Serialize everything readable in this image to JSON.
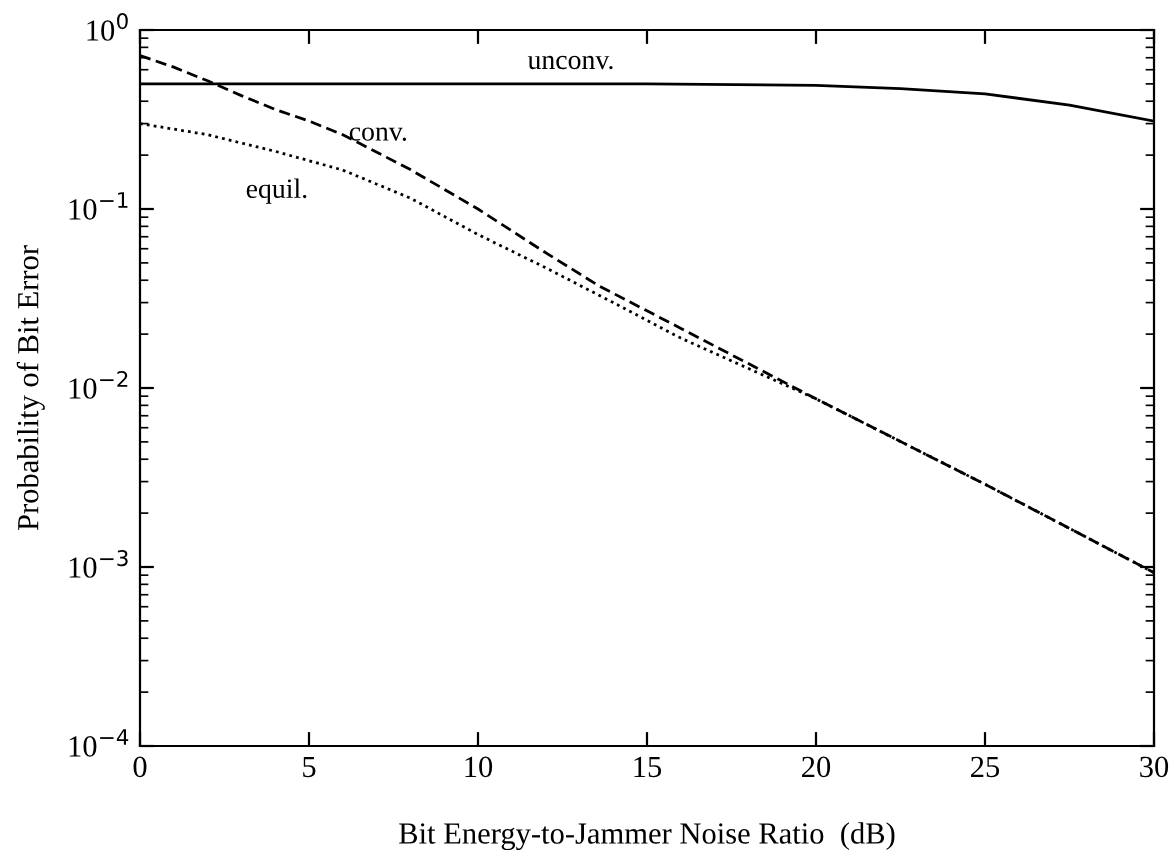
{
  "chart_data": {
    "type": "line",
    "xlabel": "Bit Energy-to-Jammer Noise Ratio  (dB)",
    "ylabel": "Probability of Bit Error",
    "log": "y",
    "xlim": [
      0,
      30
    ],
    "xticks": [
      0,
      5,
      10,
      15,
      20,
      25,
      30
    ],
    "ylim": [
      0.0001,
      1
    ],
    "yticks": [
      {
        "value": 0.0001,
        "label": "10$^{−4}$"
      },
      {
        "value": 0.001,
        "label": "10$^{−3}$"
      },
      {
        "value": 0.01,
        "label": "10$^{−2}$"
      },
      {
        "value": 0.1,
        "label": "10$^{−1}$"
      },
      {
        "value": 1,
        "label": "10$^{0}$"
      }
    ],
    "grid": false,
    "legend": false,
    "marker": "none",
    "series": [
      {
        "color": "#000000",
        "line_style": "solid",
        "x": [
          0,
          10,
          15,
          20,
          22.5,
          25,
          27.5,
          30
        ],
        "values": [
          0.5,
          0.5,
          0.5,
          0.49,
          0.47,
          0.44,
          0.38,
          0.31
        ]
      },
      {
        "color": "#000000",
        "line_style": "dashed",
        "x": [
          0,
          1,
          2,
          3,
          4,
          5,
          6,
          8,
          10,
          12,
          13.6,
          15,
          20,
          25,
          30
        ],
        "values": [
          0.72,
          0.62,
          0.52,
          0.43,
          0.36,
          0.31,
          0.26,
          0.166,
          0.1,
          0.057,
          0.037,
          0.027,
          0.0087,
          0.0029,
          0.00093
        ]
      },
      {
        "color": "#000000",
        "line_style": "dotted",
        "x": [
          0,
          2,
          4,
          6,
          8,
          10,
          12,
          14,
          16,
          20,
          25,
          30
        ],
        "values": [
          0.3,
          0.26,
          0.21,
          0.165,
          0.115,
          0.072,
          0.047,
          0.03,
          0.019,
          0.0087,
          0.0029,
          0.00093
        ]
      }
    ],
    "annotations": [
      "unconv.",
      "conv.",
      "equil."
    ]
  }
}
